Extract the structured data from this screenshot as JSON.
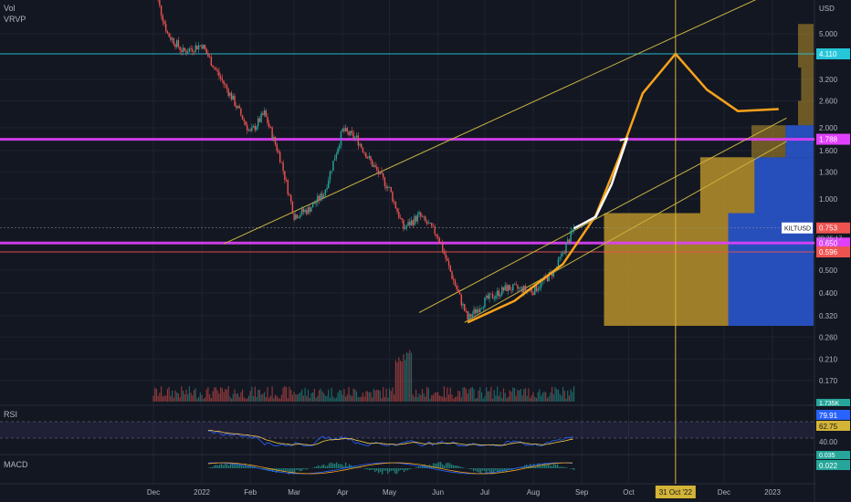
{
  "panel_labels": {
    "vol": "Vol",
    "vrvp": "VRVP",
    "rsi": "RSI",
    "macd": "MACD"
  },
  "currency": "USD",
  "symbol": "KILTUSD",
  "countdown": "20:25:17",
  "colors": {
    "bg": "#131722",
    "up": "#26a69a",
    "down": "#ef5350",
    "grid": "#1f2330",
    "magenta": "#e040fb",
    "orange": "#f7a21b",
    "channel": "#c9b441",
    "cyan": "#26c6da",
    "red_line": "#ef5350",
    "white": "#ffffff",
    "vp_value": "#b8902a",
    "vp_vol": "#2a55cc"
  },
  "chart_data": {
    "type": "line",
    "price_axis": {
      "scale": "log",
      "tick_labels": [
        "5.000",
        "3.200",
        "2.600",
        "2.000",
        "1.600",
        "1.300",
        "1.000",
        "0.650",
        "0.500",
        "0.400",
        "0.320",
        "0.260",
        "0.210",
        "0.170"
      ],
      "ticks": [
        5.0,
        3.2,
        2.6,
        2.0,
        1.6,
        1.3,
        1.0,
        0.65,
        0.5,
        0.4,
        0.32,
        0.26,
        0.21,
        0.17
      ]
    },
    "time_axis": {
      "labels": [
        "Dec",
        "2022",
        "Feb",
        "Mar",
        "Apr",
        "May",
        "Jun",
        "Jul",
        "Aug",
        "Sep",
        "Oct",
        "31 Oct '22",
        "Dec",
        "2023"
      ],
      "dates": [
        "2021-12-01",
        "2022-01-01",
        "2022-02-01",
        "2022-03-01",
        "2022-04-01",
        "2022-05-01",
        "2022-06-01",
        "2022-07-01",
        "2022-08-01",
        "2022-09-01",
        "2022-10-01",
        "2022-10-31",
        "2022-12-01",
        "2023-01-01"
      ],
      "highlight": "31 Oct '22"
    },
    "price_path": [
      [
        "2021-12-01",
        8.0
      ],
      [
        "2021-12-10",
        5.0
      ],
      [
        "2021-12-20",
        4.2
      ],
      [
        "2022-01-01",
        4.5
      ],
      [
        "2022-01-10",
        3.5
      ],
      [
        "2022-01-20",
        2.7
      ],
      [
        "2022-02-01",
        1.9
      ],
      [
        "2022-02-10",
        2.3
      ],
      [
        "2022-02-20",
        1.5
      ],
      [
        "2022-03-01",
        0.85
      ],
      [
        "2022-03-10",
        0.9
      ],
      [
        "2022-03-20",
        1.05
      ],
      [
        "2022-04-01",
        1.95
      ],
      [
        "2022-04-10",
        1.8
      ],
      [
        "2022-04-20",
        1.4
      ],
      [
        "2022-05-01",
        1.1
      ],
      [
        "2022-05-10",
        0.75
      ],
      [
        "2022-05-20",
        0.85
      ],
      [
        "2022-06-01",
        0.7
      ],
      [
        "2022-06-10",
        0.47
      ],
      [
        "2022-06-20",
        0.31
      ],
      [
        "2022-07-01",
        0.37
      ],
      [
        "2022-07-15",
        0.42
      ],
      [
        "2022-08-01",
        0.41
      ],
      [
        "2022-08-15",
        0.5
      ],
      [
        "2022-08-27",
        0.75
      ]
    ],
    "projection_path": [
      [
        "2022-08-27",
        0.75
      ],
      [
        "2022-09-01",
        0.78
      ],
      [
        "2022-09-10",
        0.84
      ],
      [
        "2022-09-20",
        1.15
      ],
      [
        "2022-09-30",
        1.8
      ]
    ],
    "curve_points": [
      [
        "2022-06-20",
        0.3
      ],
      [
        "2022-07-20",
        0.37
      ],
      [
        "2022-08-20",
        0.53
      ],
      [
        "2022-09-10",
        0.85
      ],
      [
        "2022-09-25",
        1.5
      ],
      [
        "2022-10-10",
        2.8
      ],
      [
        "2022-10-31",
        4.11
      ],
      [
        "2022-11-20",
        2.9
      ],
      [
        "2022-12-10",
        2.35
      ],
      [
        "2023-01-05",
        2.4
      ]
    ],
    "horizontal_levels": [
      {
        "price": 4.11,
        "label": "4.110",
        "color": "cyan"
      },
      {
        "price": 1.788,
        "label": "1.788",
        "color": "magenta"
      },
      {
        "price": 0.753,
        "label": "0.753",
        "color": "red_line",
        "tag": true
      },
      {
        "price": 0.65,
        "label": "0.650",
        "color": "magenta"
      },
      {
        "price": 0.596,
        "label": "0.596",
        "color": "red_line"
      }
    ],
    "channel_lines": [
      {
        "from": [
          "2022-01-15",
          0.645
        ],
        "to": [
          "2023-01-10",
          8.0
        ]
      },
      {
        "from": [
          "2022-05-20",
          0.33
        ],
        "to": [
          "2023-01-10",
          2.2
        ]
      },
      {
        "from": [
          "2022-06-18",
          0.3
        ],
        "to": [
          "2023-01-10",
          1.75
        ]
      }
    ],
    "volume_profile": [
      {
        "low": 0.29,
        "high": 0.87,
        "value": 80,
        "volume": 55
      },
      {
        "low": 0.87,
        "high": 1.5,
        "value": 35,
        "volume": 38
      },
      {
        "low": 1.5,
        "high": 2.05,
        "value": 22,
        "volume": 18
      },
      {
        "low": 2.05,
        "high": 2.6,
        "value": 10,
        "volume": 0
      },
      {
        "low": 2.6,
        "high": 3.6,
        "value": 8,
        "volume": 0
      },
      {
        "low": 3.6,
        "high": 5.5,
        "value": 10,
        "volume": 0
      }
    ],
    "rsi": {
      "value": "79.91",
      "ma_value": "62.75",
      "level": "40.00"
    },
    "macd": {
      "signal": "0.035",
      "value": "0.022"
    },
    "volume_label": "1.735K"
  }
}
